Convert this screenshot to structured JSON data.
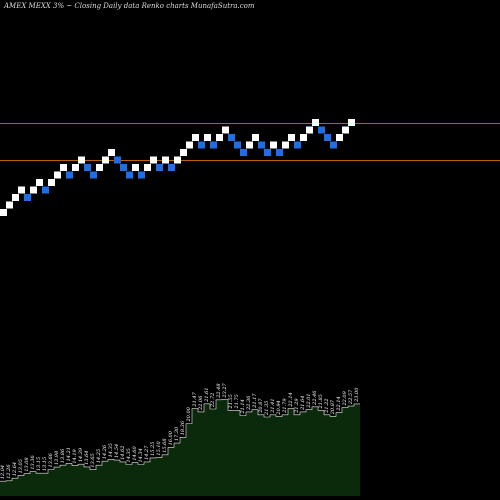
{
  "header": {
    "text": "AMEX  MEXX  3% ~  Closing Daily data  Renko  charts MunafaSutra.com"
  },
  "chart_data": {
    "type": "renko",
    "title": "AMEX  MEXX  3% ~  Closing Daily data  Renko  charts MunafaSutra.com",
    "colors": {
      "up_brick": "#ffffff",
      "down_brick": "#1e6fe6",
      "level_line": "#b8620a",
      "volume_fill": "#0b2a0b",
      "volume_stroke": "#e8e8e8",
      "background": "#000000"
    },
    "bricks": [
      {
        "dir": "up",
        "level": 0
      },
      {
        "dir": "up",
        "level": 1
      },
      {
        "dir": "up",
        "level": 2
      },
      {
        "dir": "up",
        "level": 3
      },
      {
        "dir": "down",
        "level": 2
      },
      {
        "dir": "up",
        "level": 3
      },
      {
        "dir": "up",
        "level": 4
      },
      {
        "dir": "down",
        "level": 3
      },
      {
        "dir": "up",
        "level": 4
      },
      {
        "dir": "up",
        "level": 5
      },
      {
        "dir": "up",
        "level": 6
      },
      {
        "dir": "down",
        "level": 5
      },
      {
        "dir": "up",
        "level": 6
      },
      {
        "dir": "up",
        "level": 7
      },
      {
        "dir": "down",
        "level": 6
      },
      {
        "dir": "down",
        "level": 5
      },
      {
        "dir": "up",
        "level": 6
      },
      {
        "dir": "up",
        "level": 7
      },
      {
        "dir": "up",
        "level": 8
      },
      {
        "dir": "down",
        "level": 7
      },
      {
        "dir": "down",
        "level": 6
      },
      {
        "dir": "down",
        "level": 5
      },
      {
        "dir": "up",
        "level": 6
      },
      {
        "dir": "down",
        "level": 5
      },
      {
        "dir": "up",
        "level": 6
      },
      {
        "dir": "up",
        "level": 7
      },
      {
        "dir": "down",
        "level": 6
      },
      {
        "dir": "up",
        "level": 7
      },
      {
        "dir": "down",
        "level": 6
      },
      {
        "dir": "up",
        "level": 7
      },
      {
        "dir": "up",
        "level": 8
      },
      {
        "dir": "up",
        "level": 9
      },
      {
        "dir": "up",
        "level": 10
      },
      {
        "dir": "down",
        "level": 9
      },
      {
        "dir": "up",
        "level": 10
      },
      {
        "dir": "down",
        "level": 9
      },
      {
        "dir": "up",
        "level": 10
      },
      {
        "dir": "up",
        "level": 11
      },
      {
        "dir": "down",
        "level": 10
      },
      {
        "dir": "down",
        "level": 9
      },
      {
        "dir": "down",
        "level": 8
      },
      {
        "dir": "up",
        "level": 9
      },
      {
        "dir": "up",
        "level": 10
      },
      {
        "dir": "down",
        "level": 9
      },
      {
        "dir": "down",
        "level": 8
      },
      {
        "dir": "up",
        "level": 9
      },
      {
        "dir": "down",
        "level": 8
      },
      {
        "dir": "up",
        "level": 9
      },
      {
        "dir": "up",
        "level": 10
      },
      {
        "dir": "down",
        "level": 9
      },
      {
        "dir": "up",
        "level": 10
      },
      {
        "dir": "up",
        "level": 11
      },
      {
        "dir": "up",
        "level": 12
      },
      {
        "dir": "down",
        "level": 11
      },
      {
        "dir": "down",
        "level": 10
      },
      {
        "dir": "down",
        "level": 9
      },
      {
        "dir": "up",
        "level": 10
      },
      {
        "dir": "up",
        "level": 11
      },
      {
        "dir": "up",
        "level": 12
      }
    ],
    "levels": [
      12,
      7
    ],
    "volume": {
      "values": [
        12.04,
        12.1,
        12.45,
        12.84,
        13.08,
        13.36,
        13.15,
        13.15,
        13.66,
        13.98,
        14.25,
        14.5,
        14.19,
        14.39,
        14.02,
        13.64,
        14.25,
        14.8,
        15.05,
        14.95,
        14.7,
        14.35,
        14.6,
        14.34,
        14.7,
        15.25,
        15.3,
        15.68,
        16.7,
        17.3,
        18.1,
        20.0,
        22.06,
        21.6,
        22.72,
        22.0,
        23.27,
        23.3,
        21.8,
        21.8,
        21.1,
        21.6,
        21.9,
        21.2,
        20.9,
        21.2,
        20.95,
        21.2,
        22.05,
        21.2,
        21.6,
        21.9,
        22.3,
        21.8,
        21.2,
        21.0,
        21.5,
        22.2,
        22.4,
        22.7
      ],
      "labels": [
        "12.04",
        "12.26",
        "12.64",
        "13.05",
        "13.08",
        "13.36",
        "13.15",
        "13.15",
        "13.66",
        "13.98",
        "13.86",
        "14.21",
        "14.19",
        "14.39",
        "13.64",
        "13.65",
        "14.25",
        "14.26",
        "14.35",
        "14.54",
        "14.62",
        "14.35",
        "14.60",
        "14.34",
        "14.27",
        "15.25",
        "15.10",
        "15.68",
        "16.00",
        "17.30",
        "18.36",
        "20.00",
        "21.47",
        "22.06",
        "21.61",
        "22.72",
        "22.48",
        "23.27",
        "21.55",
        "21.75",
        "21.14",
        "22.36",
        "21.17",
        "20.87",
        "21.35",
        "21.41",
        "20.94",
        "21.79",
        "22.14",
        "21.29",
        "21.64",
        "22.01",
        "22.46",
        "21.85",
        "21.22",
        "20.87",
        "22.14",
        "22.09",
        "22.57",
        "23.00"
      ],
      "ylim": [
        10,
        26
      ]
    }
  }
}
